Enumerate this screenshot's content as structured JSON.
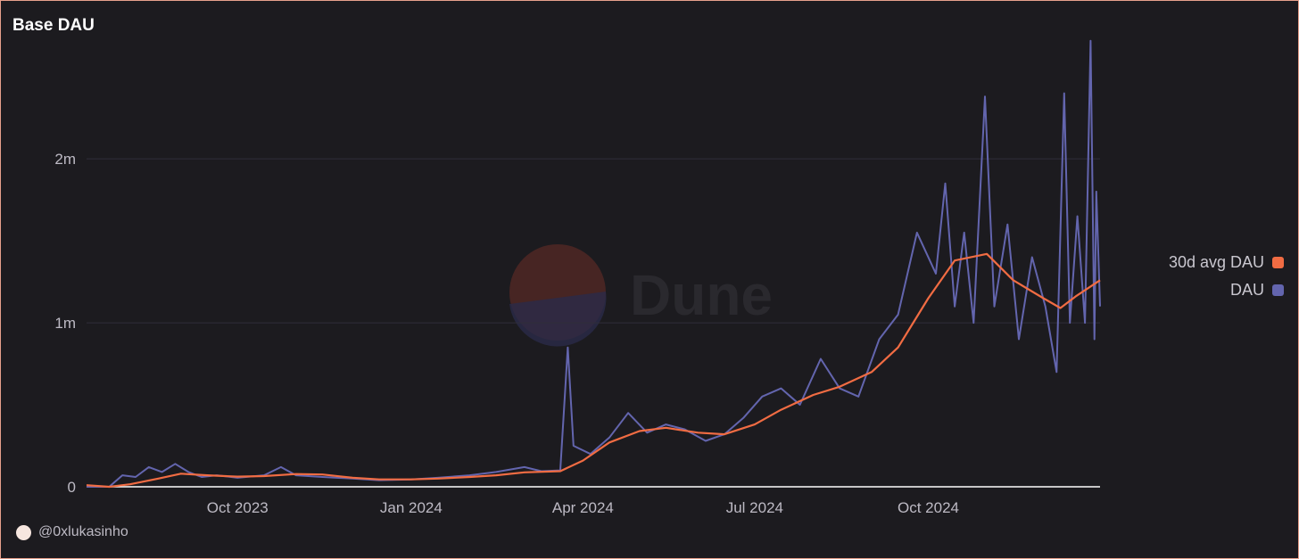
{
  "title": "Base DAU",
  "watermark": "Dune",
  "author": "@0xlukasinho",
  "chart_data": {
    "type": "line",
    "title": "Base DAU",
    "xlabel": "",
    "ylabel": "",
    "ylim": [
      0,
      2800000
    ],
    "xlim": [
      "2023-07-13",
      "2024-12-31"
    ],
    "x_ticks": [
      {
        "date": "2023-10-01",
        "label": "Oct 2023"
      },
      {
        "date": "2024-01-01",
        "label": "Jan 2024"
      },
      {
        "date": "2024-04-01",
        "label": "Apr 2024"
      },
      {
        "date": "2024-07-01",
        "label": "Jul 2024"
      },
      {
        "date": "2024-10-01",
        "label": "Oct 2024"
      }
    ],
    "y_ticks": [
      {
        "value": 0,
        "label": "0"
      },
      {
        "value": 1000000,
        "label": "1m"
      },
      {
        "value": 2000000,
        "label": "2m"
      }
    ],
    "legend_position": "right",
    "series": [
      {
        "name": "30d avg DAU",
        "color": "#f16c43",
        "points": [
          [
            "2023-07-13",
            10000
          ],
          [
            "2023-07-25",
            0
          ],
          [
            "2023-08-05",
            15000
          ],
          [
            "2023-08-20",
            50000
          ],
          [
            "2023-09-01",
            80000
          ],
          [
            "2023-09-15",
            70000
          ],
          [
            "2023-10-01",
            62000
          ],
          [
            "2023-10-15",
            65000
          ],
          [
            "2023-11-01",
            78000
          ],
          [
            "2023-11-15",
            75000
          ],
          [
            "2023-12-01",
            55000
          ],
          [
            "2023-12-15",
            45000
          ],
          [
            "2024-01-01",
            45000
          ],
          [
            "2024-01-15",
            50000
          ],
          [
            "2024-02-01",
            60000
          ],
          [
            "2024-02-15",
            70000
          ],
          [
            "2024-03-01",
            88000
          ],
          [
            "2024-03-20",
            95000
          ],
          [
            "2024-04-01",
            160000
          ],
          [
            "2024-04-15",
            270000
          ],
          [
            "2024-05-01",
            340000
          ],
          [
            "2024-05-15",
            360000
          ],
          [
            "2024-06-01",
            330000
          ],
          [
            "2024-06-15",
            320000
          ],
          [
            "2024-07-01",
            380000
          ],
          [
            "2024-07-15",
            470000
          ],
          [
            "2024-08-01",
            560000
          ],
          [
            "2024-08-15",
            610000
          ],
          [
            "2024-09-01",
            700000
          ],
          [
            "2024-09-15",
            850000
          ],
          [
            "2024-10-01",
            1150000
          ],
          [
            "2024-10-15",
            1380000
          ],
          [
            "2024-11-01",
            1420000
          ],
          [
            "2024-11-15",
            1260000
          ],
          [
            "2024-12-01",
            1150000
          ],
          [
            "2024-12-10",
            1090000
          ],
          [
            "2024-12-18",
            1160000
          ],
          [
            "2024-12-31",
            1260000
          ]
        ]
      },
      {
        "name": "DAU",
        "color": "#6365ae",
        "points": [
          [
            "2023-07-13",
            0
          ],
          [
            "2023-07-25",
            0
          ],
          [
            "2023-08-01",
            70000
          ],
          [
            "2023-08-08",
            60000
          ],
          [
            "2023-08-15",
            120000
          ],
          [
            "2023-08-22",
            90000
          ],
          [
            "2023-08-29",
            140000
          ],
          [
            "2023-09-05",
            90000
          ],
          [
            "2023-09-12",
            60000
          ],
          [
            "2023-09-20",
            70000
          ],
          [
            "2023-10-01",
            55000
          ],
          [
            "2023-10-15",
            70000
          ],
          [
            "2023-10-24",
            120000
          ],
          [
            "2023-11-01",
            70000
          ],
          [
            "2023-11-15",
            60000
          ],
          [
            "2023-12-01",
            50000
          ],
          [
            "2023-12-15",
            40000
          ],
          [
            "2024-01-01",
            45000
          ],
          [
            "2024-01-15",
            55000
          ],
          [
            "2024-02-01",
            70000
          ],
          [
            "2024-02-15",
            90000
          ],
          [
            "2024-03-01",
            120000
          ],
          [
            "2024-03-10",
            95000
          ],
          [
            "2024-03-20",
            100000
          ],
          [
            "2024-03-24",
            850000
          ],
          [
            "2024-03-27",
            250000
          ],
          [
            "2024-04-05",
            200000
          ],
          [
            "2024-04-15",
            300000
          ],
          [
            "2024-04-25",
            450000
          ],
          [
            "2024-05-05",
            330000
          ],
          [
            "2024-05-15",
            380000
          ],
          [
            "2024-05-25",
            350000
          ],
          [
            "2024-06-05",
            280000
          ],
          [
            "2024-06-15",
            320000
          ],
          [
            "2024-06-25",
            420000
          ],
          [
            "2024-07-05",
            550000
          ],
          [
            "2024-07-15",
            600000
          ],
          [
            "2024-07-25",
            500000
          ],
          [
            "2024-08-05",
            780000
          ],
          [
            "2024-08-15",
            600000
          ],
          [
            "2024-08-25",
            550000
          ],
          [
            "2024-09-05",
            900000
          ],
          [
            "2024-09-15",
            1050000
          ],
          [
            "2024-09-25",
            1550000
          ],
          [
            "2024-10-05",
            1300000
          ],
          [
            "2024-10-10",
            1850000
          ],
          [
            "2024-10-15",
            1100000
          ],
          [
            "2024-10-20",
            1550000
          ],
          [
            "2024-10-25",
            1000000
          ],
          [
            "2024-10-31",
            2380000
          ],
          [
            "2024-11-05",
            1100000
          ],
          [
            "2024-11-12",
            1600000
          ],
          [
            "2024-11-18",
            900000
          ],
          [
            "2024-11-25",
            1400000
          ],
          [
            "2024-12-02",
            1100000
          ],
          [
            "2024-12-08",
            700000
          ],
          [
            "2024-12-12",
            2400000
          ],
          [
            "2024-12-15",
            1000000
          ],
          [
            "2024-12-19",
            1650000
          ],
          [
            "2024-12-23",
            1000000
          ],
          [
            "2024-12-26",
            2720000
          ],
          [
            "2024-12-28",
            900000
          ],
          [
            "2024-12-29",
            1800000
          ],
          [
            "2024-12-31",
            1100000
          ]
        ]
      }
    ]
  }
}
